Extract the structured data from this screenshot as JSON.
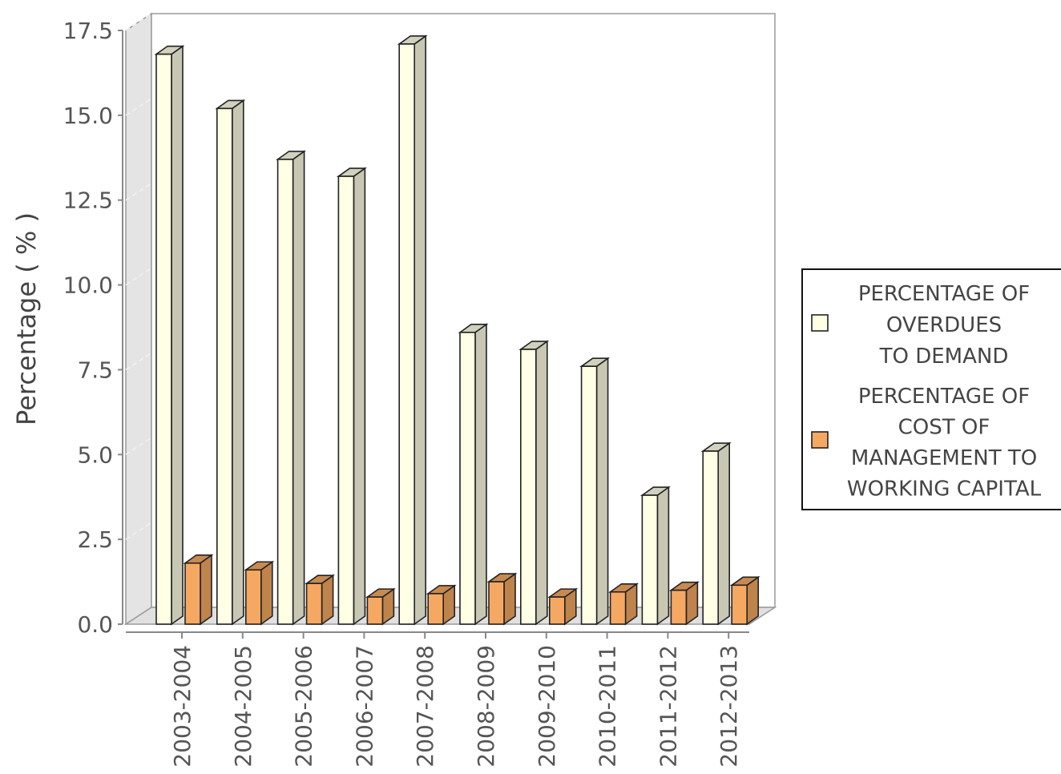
{
  "chart_data": {
    "type": "bar",
    "subtype": "3d-grouped",
    "categories": [
      "2003-2004",
      "2004-2005",
      "2005-2006",
      "2006-2007",
      "2007-2008",
      "2008-2009",
      "2009-2010",
      "2010-2011",
      "2011-2012",
      "2012-2013"
    ],
    "series": [
      {
        "name": "PERCENTAGE OF OVERDUES TO DEMAND",
        "name_lines": [
          "PERCENTAGE OF",
          "OVERDUES",
          "TO DEMAND"
        ],
        "color": "#ffffe6",
        "values": [
          16.8,
          15.2,
          13.7,
          13.2,
          17.1,
          8.6,
          8.1,
          7.6,
          3.8,
          5.1
        ]
      },
      {
        "name": "PERCENTAGE OF COST OF MANAGEMENT TO WORKING CAPITAL",
        "name_lines": [
          "PERCENTAGE OF",
          "COST OF",
          "MANAGEMENT TO",
          "WORKING CAPITAL"
        ],
        "color": "#f5a862",
        "values": [
          1.8,
          1.6,
          1.2,
          0.8,
          0.9,
          1.25,
          0.8,
          0.95,
          1.0,
          1.15
        ]
      }
    ],
    "title": "",
    "xlabel": "",
    "ylabel": "Percentage ( % )",
    "yticks": [
      "0.0",
      "2.5",
      "5.0",
      "7.5",
      "10.0",
      "12.5",
      "15.0",
      "17.5"
    ],
    "ylim": [
      0,
      17.5
    ],
    "legend_position": "right"
  }
}
